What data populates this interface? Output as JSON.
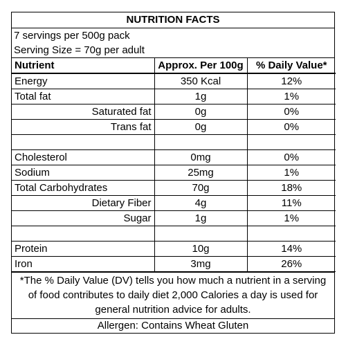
{
  "title": "NUTRITION FACTS",
  "servings_per_pack": "7 servings per 500g pack",
  "serving_size": "Serving Size = 70g per adult",
  "headers": {
    "nutrient": "Nutrient",
    "per100g": "Approx. Per 100g",
    "dv": "% Daily Value*"
  },
  "rows": [
    {
      "name": "Energy",
      "amount": "350 Kcal",
      "dv": "12%"
    },
    {
      "name": "Total fat",
      "amount": "1g",
      "dv": "1%"
    },
    {
      "name": "Saturated fat",
      "amount": "0g",
      "dv": "0%"
    },
    {
      "name": "Trans fat",
      "amount": "0g",
      "dv": "0%"
    },
    {
      "name": "Cholesterol",
      "amount": "0mg",
      "dv": "0%"
    },
    {
      "name": "Sodium",
      "amount": "25mg",
      "dv": "1%"
    },
    {
      "name": "Total Carbohydrates",
      "amount": "70g",
      "dv": "18%"
    },
    {
      "name": "Dietary Fiber",
      "amount": "4g",
      "dv": "11%"
    },
    {
      "name": "Sugar",
      "amount": "1g",
      "dv": "1%"
    },
    {
      "name": "Protein",
      "amount": "10g",
      "dv": "14%"
    },
    {
      "name": "Iron",
      "amount": "3mg",
      "dv": "26%"
    }
  ],
  "footnote": "*The % Daily Value (DV) tells you how much a nutrient in a serving of food contributes to daily diet 2,000 Calories a day is used for general nutrition advice for adults.",
  "allergen": "Allergen: Contains Wheat Gluten"
}
